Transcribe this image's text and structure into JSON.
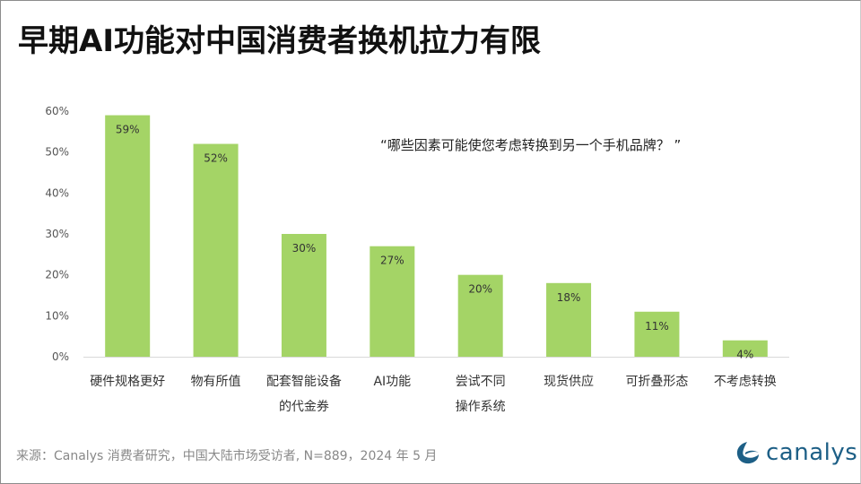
{
  "title": "早期AI功能对中国消费者换机拉力有限",
  "quote": "“哪些因素可能使您考虑转换到另一个手机品牌？  ”",
  "source": "来源：Canalys 消费者研究，中国大陆市场受访者, N=889，2024 年 5 月",
  "logo": {
    "text": "canalys",
    "color": "#1d5f86"
  },
  "chart_data": {
    "type": "bar",
    "categories": [
      [
        "硬件规格更好"
      ],
      [
        "物有所值"
      ],
      [
        "配套智能设备",
        "的代金券"
      ],
      [
        "AI功能"
      ],
      [
        "尝试不同",
        "操作系统"
      ],
      [
        "现货供应"
      ],
      [
        "可折叠形态"
      ],
      [
        "不考虑转换"
      ]
    ],
    "values": [
      59,
      52,
      30,
      27,
      20,
      18,
      11,
      4
    ],
    "data_labels": [
      "59%",
      "52%",
      "30%",
      "27%",
      "20%",
      "18%",
      "11%",
      "4%"
    ],
    "yticks": [
      "0%",
      "10%",
      "20%",
      "30%",
      "40%",
      "50%",
      "60%"
    ],
    "ylim": [
      0,
      60
    ],
    "grid": false,
    "bar_color": "#a4d466",
    "title": "",
    "xlabel": "",
    "ylabel": ""
  }
}
